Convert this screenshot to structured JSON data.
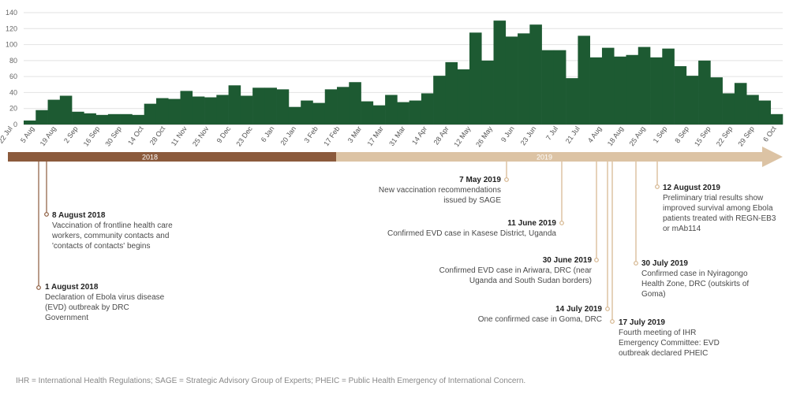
{
  "chart_data": {
    "type": "bar",
    "title": "",
    "xlabel": "",
    "ylabel": "",
    "ylim": [
      0,
      140
    ],
    "yticks": [
      0,
      20,
      40,
      60,
      80,
      100,
      120,
      140
    ],
    "grid": true,
    "bar_color": "#1d5a32",
    "x_tick_labels": [
      "22 Jul",
      "5 Aug",
      "19 Aug",
      "2 Sep",
      "16 Sep",
      "30 Sep",
      "14 Oct",
      "28 Oct",
      "11 Nov",
      "25 Nov",
      "9 Dec",
      "23 Dec",
      "6 Jan",
      "20 Jan",
      "3 Feb",
      "17 Feb",
      "3 Mar",
      "17 Mar",
      "31 Mar",
      "14 Apr",
      "28 Apr",
      "12 May",
      "26 May",
      "9 Jun",
      "23 Jun",
      "7 Jul",
      "21 Jul",
      "4 Aug",
      "18 Aug",
      "25 Aug",
      "1 Sep",
      "8 Sep",
      "15 Sep",
      "22 Sep",
      "29 Sep",
      "6 Oct"
    ],
    "values": [
      5,
      18,
      31,
      36,
      16,
      14,
      12,
      13,
      13,
      12,
      26,
      33,
      32,
      42,
      35,
      34,
      37,
      49,
      36,
      46,
      46,
      44,
      22,
      30,
      27,
      44,
      47,
      53,
      29,
      24,
      37,
      28,
      30,
      39,
      61,
      78,
      69,
      115,
      80,
      130,
      110,
      114,
      125,
      93,
      93,
      58,
      111,
      84,
      96,
      85,
      87,
      97,
      84,
      95,
      73,
      61,
      80,
      59,
      39,
      52,
      37,
      30,
      13
    ]
  },
  "timeline": {
    "year_2018": "2018",
    "year_2019": "2019",
    "color_2018": "#8b5a3c",
    "color_2019": "#dcc3a4"
  },
  "events": [
    {
      "date": "1 August 2018",
      "desc": "Declaration of Ebola virus disease (EVD) outbreak by DRC Government"
    },
    {
      "date": "8 August 2018",
      "desc": "Vaccination of frontline health care workers, community contacts and 'contacts of contacts' begins"
    },
    {
      "date": "7 May 2019",
      "desc": "New vaccination recommendations issued by SAGE"
    },
    {
      "date": "11 June 2019",
      "desc": "Confirmed EVD case in Kasese District, Uganda"
    },
    {
      "date": "30 June 2019",
      "desc": "Confirmed EVD case in Ariwara, DRC (near Uganda and South Sudan borders)"
    },
    {
      "date": "14 July 2019",
      "desc": "One confirmed case in Goma, DRC"
    },
    {
      "date": "17 July 2019",
      "desc": "Fourth meeting of IHR Emergency Committee: EVD outbreak declared PHEIC"
    },
    {
      "date": "30 July 2019",
      "desc": "Confirmed case in Nyiragongo Health Zone, DRC (outskirts of Goma)"
    },
    {
      "date": "12 August 2019",
      "desc": "Preliminary trial results show improved survival among Ebola patients treated with REGN-EB3 or mAb114"
    }
  ],
  "footnote": "IHR = International Health Regulations; SAGE = Strategic Advisory Group of Experts; PHEIC = Public Health Emergency of International Concern."
}
